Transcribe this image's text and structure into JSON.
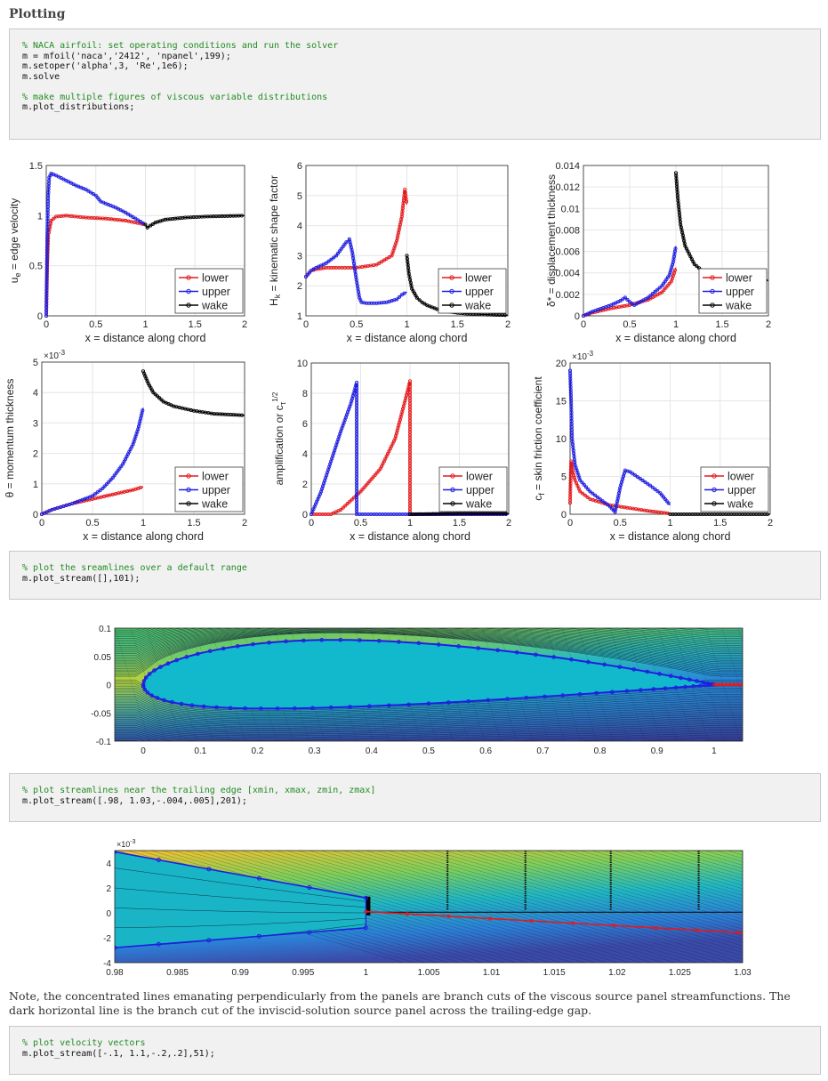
{
  "heading": "Plotting",
  "code_blocks": [
    {
      "lines": [
        {
          "text": "% NACA airfoil: set operating conditions and run the solver",
          "comment": true
        },
        {
          "text": "m = mfoil('naca','2412', 'npanel',199);",
          "comment": false
        },
        {
          "text": "m.setoper('alpha',3, 'Re',1e6);",
          "comment": false
        },
        {
          "text": "m.solve",
          "comment": false
        },
        {
          "text": "",
          "comment": false
        },
        {
          "text": "% make multiple figures of viscous variable distributions",
          "comment": true
        },
        {
          "text": "m.plot_distributions;",
          "comment": false
        }
      ]
    },
    {
      "lines": [
        {
          "text": "% plot the sreamlines over a default range",
          "comment": true
        },
        {
          "text": "m.plot_stream([],101);",
          "comment": false
        }
      ]
    },
    {
      "lines": [
        {
          "text": "% plot streamlines near the trailing edge [xmin, xmax, zmin, zmax]",
          "comment": true
        },
        {
          "text": "m.plot_stream([.98, 1.03,-.004,.005],201);",
          "comment": false
        }
      ]
    },
    {
      "lines": [
        {
          "text": "% plot velocity vectors",
          "comment": true
        },
        {
          "text": "m.plot_stream([-.1, 1.1,-.2,.2],51);",
          "comment": false
        }
      ]
    }
  ],
  "note": "Note, the concentrated lines emanating perpendicularly from the panels are branch cuts of the viscous source panel streamfunctions. The dark horizontal line is the branch cut of the inviscid-solution source panel across the trailing-edge gap.",
  "colors": {
    "lower": "#e31a1c",
    "upper": "#1f1fe0",
    "wake": "#000000"
  },
  "chart_data": [
    {
      "type": "line",
      "xlabel": "x = distance along chord",
      "ylabel": "u_e = edge velocity",
      "xlim": [
        0,
        2
      ],
      "ylim": [
        0,
        1.5
      ],
      "xticks": [
        "0",
        "0.5",
        "1",
        "1.5",
        "2"
      ],
      "yticks": [
        "0",
        "0.5",
        "1",
        "1.5"
      ],
      "exponent": "",
      "legend": "right",
      "grid": true,
      "series": [
        {
          "name": "lower",
          "x": [
            0,
            0.01,
            0.02,
            0.05,
            0.1,
            0.2,
            0.4,
            0.6,
            0.8,
            0.95,
            1.0
          ],
          "y": [
            0,
            0.5,
            0.8,
            0.95,
            0.99,
            1.0,
            0.98,
            0.97,
            0.95,
            0.92,
            0.91
          ]
        },
        {
          "name": "upper",
          "x": [
            0,
            0.01,
            0.02,
            0.03,
            0.05,
            0.1,
            0.2,
            0.3,
            0.4,
            0.5,
            0.55,
            0.6,
            0.7,
            0.8,
            0.9,
            0.95,
            1.0
          ],
          "y": [
            0,
            0.8,
            1.2,
            1.38,
            1.42,
            1.4,
            1.35,
            1.3,
            1.26,
            1.2,
            1.14,
            1.12,
            1.08,
            1.03,
            0.97,
            0.94,
            0.91
          ]
        },
        {
          "name": "wake",
          "x": [
            1.0,
            1.02,
            1.05,
            1.1,
            1.2,
            1.3,
            1.4,
            1.6,
            1.8,
            2.0
          ],
          "y": [
            0.91,
            0.88,
            0.9,
            0.93,
            0.96,
            0.97,
            0.98,
            0.99,
            0.995,
            1.0
          ]
        }
      ]
    },
    {
      "type": "line",
      "xlabel": "x = distance along chord",
      "ylabel": "H_k = kinematic shape factor",
      "xlim": [
        0,
        2
      ],
      "ylim": [
        1,
        6
      ],
      "xticks": [
        "0",
        "0.5",
        "1",
        "1.5",
        "2"
      ],
      "yticks": [
        "1",
        "2",
        "3",
        "4",
        "5",
        "6"
      ],
      "exponent": "",
      "legend": "right",
      "grid": true,
      "series": [
        {
          "name": "lower",
          "x": [
            0,
            0.05,
            0.1,
            0.2,
            0.3,
            0.5,
            0.7,
            0.85,
            0.9,
            0.95,
            0.98,
            1.0
          ],
          "y": [
            2.3,
            2.5,
            2.55,
            2.6,
            2.6,
            2.6,
            2.7,
            3.0,
            3.5,
            4.3,
            5.2,
            4.7
          ]
        },
        {
          "name": "upper",
          "x": [
            0,
            0.05,
            0.1,
            0.2,
            0.3,
            0.4,
            0.43,
            0.46,
            0.5,
            0.53,
            0.55,
            0.6,
            0.7,
            0.8,
            0.9,
            0.95,
            1.0
          ],
          "y": [
            2.3,
            2.5,
            2.6,
            2.75,
            3.0,
            3.45,
            3.55,
            3.1,
            2.2,
            1.6,
            1.45,
            1.42,
            1.42,
            1.45,
            1.55,
            1.7,
            1.8
          ]
        },
        {
          "name": "wake",
          "x": [
            1.0,
            1.02,
            1.05,
            1.1,
            1.15,
            1.2,
            1.3,
            1.4,
            1.5,
            1.6,
            1.8,
            2.0
          ],
          "y": [
            3.0,
            2.4,
            1.9,
            1.6,
            1.45,
            1.35,
            1.22,
            1.15,
            1.1,
            1.07,
            1.04,
            1.02
          ]
        }
      ]
    },
    {
      "type": "line",
      "xlabel": "x = distance along chord",
      "ylabel": "δ* = displacement thickness",
      "xlim": [
        0,
        2
      ],
      "ylim": [
        0,
        0.014
      ],
      "xticks": [
        "0",
        "0.5",
        "1",
        "1.5",
        "2"
      ],
      "yticks": [
        "0",
        "0.002",
        "0.004",
        "0.006",
        "0.008",
        "0.01",
        "0.012",
        "0.014"
      ],
      "exponent": "",
      "legend": "right",
      "grid": true,
      "series": [
        {
          "name": "lower",
          "x": [
            0,
            0.1,
            0.3,
            0.5,
            0.7,
            0.85,
            0.95,
            1.0
          ],
          "y": [
            0,
            0.0003,
            0.0007,
            0.001,
            0.0015,
            0.0022,
            0.0032,
            0.0045
          ]
        },
        {
          "name": "upper",
          "x": [
            0,
            0.1,
            0.3,
            0.4,
            0.45,
            0.5,
            0.55,
            0.7,
            0.85,
            0.93,
            0.97,
            1.0
          ],
          "y": [
            0,
            0.0004,
            0.001,
            0.0014,
            0.0017,
            0.0013,
            0.001,
            0.0017,
            0.0028,
            0.0038,
            0.005,
            0.0065
          ]
        },
        {
          "name": "wake",
          "x": [
            1.0,
            1.02,
            1.05,
            1.1,
            1.2,
            1.3,
            1.5,
            1.7,
            2.0
          ],
          "y": [
            0.0133,
            0.011,
            0.0085,
            0.0065,
            0.0048,
            0.0041,
            0.0036,
            0.0034,
            0.0033
          ]
        }
      ]
    },
    {
      "type": "line",
      "xlabel": "x = distance along chord",
      "ylabel": "θ = momentum thickness",
      "xlim": [
        0,
        2
      ],
      "ylim": [
        0,
        5
      ],
      "xticks": [
        "0",
        "0.5",
        "1",
        "1.5",
        "2"
      ],
      "yticks": [
        "0",
        "1",
        "2",
        "3",
        "4",
        "5"
      ],
      "exponent": "×10^-3",
      "legend": "right",
      "grid": true,
      "series": [
        {
          "name": "lower",
          "x": [
            0,
            0.1,
            0.3,
            0.5,
            0.7,
            0.9,
            1.0
          ],
          "y": [
            0,
            0.15,
            0.35,
            0.5,
            0.65,
            0.8,
            0.9
          ]
        },
        {
          "name": "upper",
          "x": [
            0,
            0.1,
            0.3,
            0.5,
            0.6,
            0.7,
            0.8,
            0.9,
            0.95,
            1.0
          ],
          "y": [
            0,
            0.15,
            0.35,
            0.6,
            0.85,
            1.2,
            1.65,
            2.3,
            2.8,
            3.5
          ]
        },
        {
          "name": "wake",
          "x": [
            1.0,
            1.05,
            1.1,
            1.2,
            1.3,
            1.5,
            1.7,
            2.0
          ],
          "y": [
            4.7,
            4.3,
            4.0,
            3.7,
            3.55,
            3.4,
            3.3,
            3.25
          ]
        }
      ]
    },
    {
      "type": "line",
      "xlabel": "x = distance along chord",
      "ylabel": "amplification or c_τ^1/2",
      "xlim": [
        0,
        2
      ],
      "ylim": [
        0,
        10
      ],
      "xticks": [
        "0",
        "0.5",
        "1",
        "1.5",
        "2"
      ],
      "yticks": [
        "0",
        "2",
        "4",
        "6",
        "8",
        "10"
      ],
      "exponent": "",
      "legend": "right",
      "grid": true,
      "series": [
        {
          "name": "lower",
          "x": [
            0,
            0.2,
            0.3,
            0.5,
            0.7,
            0.85,
            0.95,
            1.0,
            1.0,
            2.0
          ],
          "y": [
            0,
            0,
            0.3,
            1.5,
            3.0,
            5.0,
            7.5,
            8.8,
            0,
            0
          ]
        },
        {
          "name": "upper",
          "x": [
            0,
            0.1,
            0.2,
            0.3,
            0.4,
            0.46,
            0.46,
            2.0
          ],
          "y": [
            0,
            1.5,
            3.5,
            5.5,
            7.3,
            8.7,
            0,
            0
          ]
        },
        {
          "name": "wake",
          "x": [
            1.0,
            1.5,
            2.0
          ],
          "y": [
            0,
            0.05,
            0.05
          ]
        }
      ]
    },
    {
      "type": "line",
      "xlabel": "x = distance along chord",
      "ylabel": "c_f = skin friction coefficient",
      "xlim": [
        0,
        2
      ],
      "ylim": [
        0,
        20
      ],
      "xticks": [
        "0",
        "0.5",
        "1",
        "1.5",
        "2"
      ],
      "yticks": [
        "0",
        "5",
        "10",
        "15",
        "20"
      ],
      "exponent": "×10^-3",
      "legend": "right",
      "grid": true,
      "series": [
        {
          "name": "lower",
          "x": [
            0,
            0.01,
            0.03,
            0.05,
            0.1,
            0.2,
            0.4,
            0.6,
            0.8,
            1.0
          ],
          "y": [
            1.5,
            7.0,
            5.5,
            4.5,
            3.0,
            2.0,
            1.2,
            0.8,
            0.4,
            0.1
          ]
        },
        {
          "name": "upper",
          "x": [
            0,
            0.01,
            0.02,
            0.05,
            0.1,
            0.2,
            0.3,
            0.4,
            0.45,
            0.5,
            0.55,
            0.6,
            0.7,
            0.8,
            0.9,
            1.0
          ],
          "y": [
            19,
            15,
            10,
            6.5,
            4.5,
            3.0,
            2.0,
            1.0,
            0.3,
            3.5,
            5.8,
            5.6,
            4.7,
            3.8,
            2.8,
            1.2
          ]
        },
        {
          "name": "wake",
          "x": [
            1.0,
            1.5,
            2.0
          ],
          "y": [
            0,
            0,
            0
          ]
        }
      ]
    },
    {
      "type": "contour",
      "title": "",
      "xlim": [
        -0.05,
        1.05
      ],
      "ylim": [
        -0.1,
        0.1
      ],
      "xticks": [
        "0",
        "0.1",
        "0.2",
        "0.3",
        "0.4",
        "0.5",
        "0.6",
        "0.7",
        "0.8",
        "0.9",
        "1"
      ],
      "yticks": [
        "-0.1",
        "-0.05",
        "0",
        "0.05",
        "0.1"
      ]
    },
    {
      "type": "contour",
      "title": "",
      "xlim": [
        0.98,
        1.03
      ],
      "ylim": [
        -4,
        5
      ],
      "exponent": "×10^-3",
      "xticks": [
        "0.98",
        "0.985",
        "0.99",
        "0.995",
        "1",
        "1.005",
        "1.01",
        "1.015",
        "1.02",
        "1.025",
        "1.03"
      ],
      "yticks": [
        "-4",
        "-2",
        "0",
        "2",
        "4"
      ]
    }
  ]
}
